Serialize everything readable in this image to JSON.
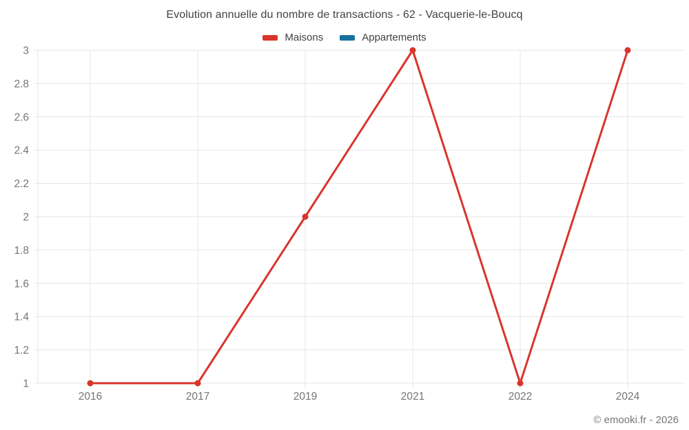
{
  "chart_data": {
    "type": "line",
    "title": "Evolution annuelle du nombre de transactions - 62 - Vacquerie-le-Boucq",
    "categories": [
      "2016",
      "2017",
      "2019",
      "2021",
      "2022",
      "2024"
    ],
    "series": [
      {
        "name": "Maisons",
        "color": "#d9342c",
        "values": [
          1,
          1,
          2,
          3,
          1,
          3
        ]
      },
      {
        "name": "Appartements",
        "color": "#17709e",
        "values": []
      }
    ],
    "ylim": [
      1,
      3
    ],
    "y_ticks": [
      1,
      1.2,
      1.4,
      1.6,
      1.8,
      2,
      2.2,
      2.4,
      2.6,
      2.8,
      3
    ],
    "xlabel": "",
    "ylabel": "",
    "grid": true,
    "legend_position": "top"
  },
  "footer": {
    "copyright": "© emooki.fr - 2026"
  },
  "colors": {
    "grid": "#e6e6e6",
    "axis_label": "#757575",
    "title_text": "#424242"
  }
}
